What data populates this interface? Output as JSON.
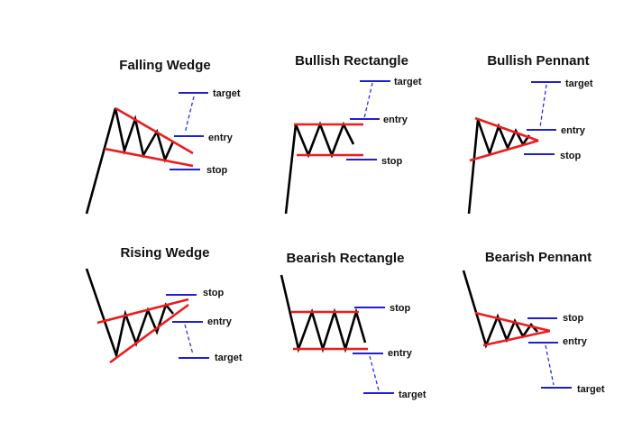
{
  "patterns": {
    "falling_wedge": {
      "title": "Falling Wedge",
      "target": "target",
      "entry": "entry",
      "stop": "stop"
    },
    "bullish_rectangle": {
      "title": "Bullish Rectangle",
      "target": "target",
      "entry": "entry",
      "stop": "stop"
    },
    "bullish_pennant": {
      "title": "Bullish Pennant",
      "target": "target",
      "entry": "entry",
      "stop": "stop"
    },
    "rising_wedge": {
      "title": "Rising Wedge",
      "target": "target",
      "entry": "entry",
      "stop": "stop"
    },
    "bearish_rectangle": {
      "title": "Bearish Rectangle",
      "target": "target",
      "entry": "entry",
      "stop": "stop"
    },
    "bearish_pennant": {
      "title": "Bearish Pennant",
      "target": "target",
      "entry": "entry",
      "stop": "stop"
    }
  },
  "colors": {
    "price_line": "#000000",
    "trend_line": "#ee1c1c",
    "level_line": "#1f1fd6",
    "projection": "#2a2aff"
  }
}
